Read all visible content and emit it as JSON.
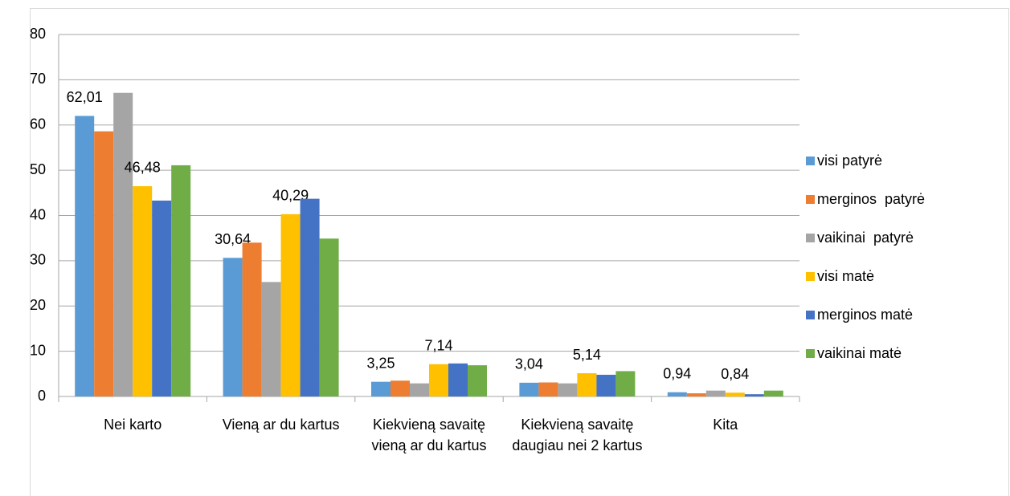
{
  "chart_data": {
    "type": "bar",
    "categories": [
      "Nei karto",
      "Vieną ar du kartus",
      "Kiekvieną savaitę vieną ar du kartus",
      "Kiekvieną savaitę daugiau nei 2 kartus",
      "Kita"
    ],
    "series": [
      {
        "name": "visi patyrė",
        "color": "#5b9bd5",
        "values": [
          62.01,
          30.64,
          3.25,
          3.04,
          0.94
        ],
        "value_labels": [
          "62,01",
          "30,64",
          "3,25",
          "3,04",
          "0,94"
        ]
      },
      {
        "name": "merginos  patyrė",
        "color": "#ed7d31",
        "values": [
          58.6,
          34.0,
          3.5,
          3.1,
          0.7
        ]
      },
      {
        "name": "vaikinai  patyrė",
        "color": "#a5a5a5",
        "values": [
          67.1,
          25.3,
          2.9,
          2.9,
          1.3
        ]
      },
      {
        "name": "visi matė",
        "color": "#ffc000",
        "values": [
          46.48,
          40.29,
          7.14,
          5.14,
          0.84
        ],
        "value_labels": [
          "46,48",
          "40,29",
          "7,14",
          "5,14",
          "0,84"
        ]
      },
      {
        "name": "merginos matė",
        "color": "#4472c4",
        "values": [
          43.3,
          43.7,
          7.3,
          4.8,
          0.5
        ]
      },
      {
        "name": "vaikinai matė",
        "color": "#70ad47",
        "values": [
          51.1,
          34.9,
          6.9,
          5.6,
          1.3
        ]
      }
    ],
    "ylim": [
      0,
      80
    ],
    "yticks": [
      0,
      10,
      20,
      30,
      40,
      50,
      60,
      70,
      80
    ],
    "grid": true,
    "legend": "right"
  }
}
